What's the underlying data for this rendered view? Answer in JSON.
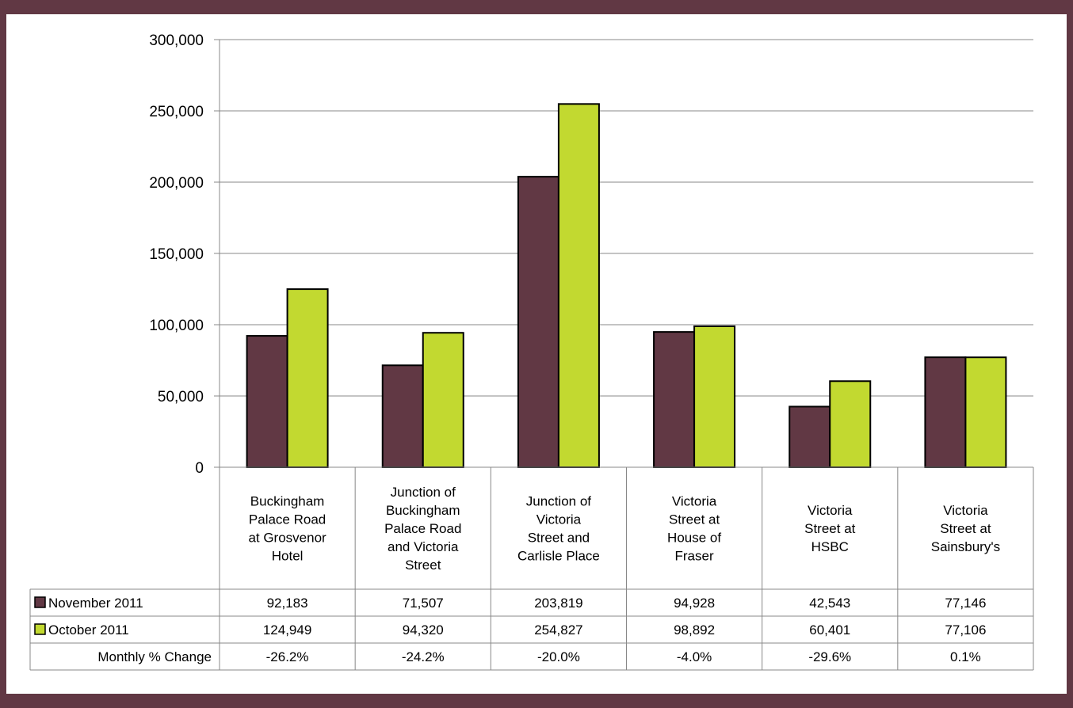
{
  "chart_data": {
    "type": "bar",
    "title": "",
    "xlabel": "",
    "ylabel": "",
    "ylim": [
      0,
      300000
    ],
    "yticks": [
      0,
      50000,
      100000,
      150000,
      200000,
      250000,
      300000
    ],
    "ytick_labels": [
      "0",
      "50,000",
      "100,000",
      "150,000",
      "200,000",
      "250,000",
      "300,000"
    ],
    "grid": true,
    "legend": "data-table",
    "categories": [
      [
        "Buckingham",
        "Palace Road",
        "at Grosvenor",
        "Hotel"
      ],
      [
        "Junction of",
        "Buckingham",
        "Palace Road",
        "and Victoria",
        "Street"
      ],
      [
        "Junction of",
        "Victoria",
        "Street and",
        "Carlisle Place"
      ],
      [
        "Victoria",
        "Street at",
        "House of",
        "Fraser"
      ],
      [
        "Victoria",
        "Street at",
        "HSBC"
      ],
      [
        "Victoria",
        "Street at",
        "Sainsbury's"
      ]
    ],
    "series": [
      {
        "name": "November 2011",
        "color": "#613844",
        "values": [
          92183,
          71507,
          203819,
          94928,
          42543,
          77146
        ],
        "value_labels": [
          "92,183",
          "71,507",
          "203,819",
          "94,928",
          "42,543",
          "77,146"
        ]
      },
      {
        "name": "October 2011",
        "color": "#c2d930",
        "values": [
          124949,
          94320,
          254827,
          98892,
          60401,
          77106
        ],
        "value_labels": [
          "124,949",
          "94,320",
          "254,827",
          "98,892",
          "60,401",
          "77,106"
        ]
      }
    ],
    "extra_rows": [
      {
        "name": "Monthly % Change",
        "values": [
          "-26.2%",
          "-24.2%",
          "-20.0%",
          "-4.0%",
          "-29.6%",
          "0.1%"
        ]
      }
    ]
  },
  "colors": {
    "frame": "#613844",
    "gridline": "#888888"
  }
}
